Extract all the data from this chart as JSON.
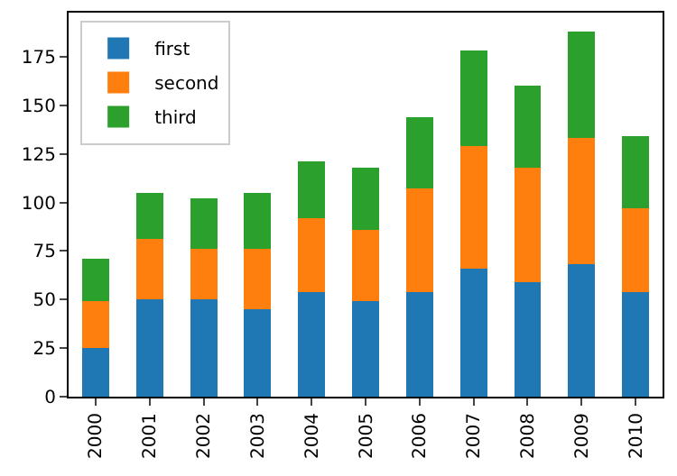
{
  "chart_data": {
    "type": "bar",
    "stacked": true,
    "categories": [
      "2000",
      "2001",
      "2002",
      "2003",
      "2004",
      "2005",
      "2006",
      "2007",
      "2008",
      "2009",
      "2010"
    ],
    "series": [
      {
        "name": "first",
        "color": "#1f77b4",
        "values": [
          25,
          50,
          50,
          45,
          54,
          49,
          54,
          66,
          59,
          68,
          54
        ]
      },
      {
        "name": "second",
        "color": "#ff7f0e",
        "values": [
          24,
          31,
          26,
          31,
          38,
          37,
          53,
          63,
          59,
          65,
          43
        ]
      },
      {
        "name": "third",
        "color": "#2ca02c",
        "values": [
          22,
          24,
          26,
          29,
          29,
          32,
          37,
          49,
          42,
          55,
          37
        ]
      }
    ],
    "ylim": [
      0,
      197.7
    ],
    "yticks": [
      0,
      25,
      50,
      75,
      100,
      125,
      150,
      175
    ],
    "grid": false,
    "legend": "top left"
  }
}
